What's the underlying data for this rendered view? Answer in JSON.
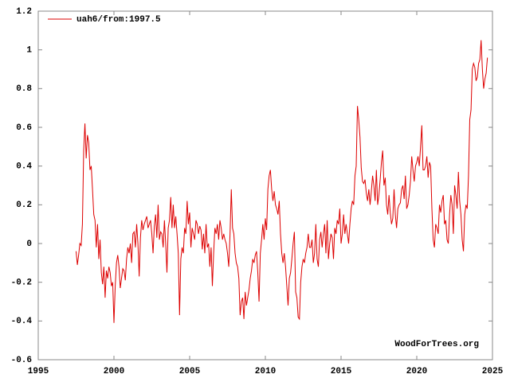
{
  "chart_data": {
    "type": "line",
    "annotation": "WoodForTrees.org",
    "xlim": [
      1995,
      2025
    ],
    "xticks": [
      1995,
      2000,
      2005,
      2010,
      2015,
      2020,
      2025
    ],
    "ylim": [
      -0.6,
      1.2
    ],
    "yticks": [
      -0.6,
      -0.4,
      -0.2,
      0,
      0.2,
      0.4,
      0.6,
      0.8,
      1,
      1.2
    ],
    "grid": false,
    "legend": "top-left",
    "x": [
      1997.5,
      1997.583,
      1997.667,
      1997.75,
      1997.833,
      1997.917,
      1998,
      1998.083,
      1998.167,
      1998.25,
      1998.333,
      1998.417,
      1998.5,
      1998.583,
      1998.667,
      1998.75,
      1998.833,
      1998.917,
      1999,
      1999.083,
      1999.167,
      1999.25,
      1999.333,
      1999.417,
      1999.5,
      1999.583,
      1999.667,
      1999.75,
      1999.833,
      1999.917,
      2000,
      2000.083,
      2000.167,
      2000.25,
      2000.333,
      2000.417,
      2000.5,
      2000.583,
      2000.667,
      2000.75,
      2000.833,
      2000.917,
      2001,
      2001.083,
      2001.167,
      2001.25,
      2001.333,
      2001.417,
      2001.5,
      2001.583,
      2001.667,
      2001.75,
      2001.833,
      2001.917,
      2002,
      2002.083,
      2002.167,
      2002.25,
      2002.333,
      2002.417,
      2002.5,
      2002.583,
      2002.667,
      2002.75,
      2002.833,
      2002.917,
      2003,
      2003.083,
      2003.167,
      2003.25,
      2003.333,
      2003.417,
      2003.5,
      2003.583,
      2003.667,
      2003.75,
      2003.833,
      2003.917,
      2004,
      2004.083,
      2004.167,
      2004.25,
      2004.333,
      2004.417,
      2004.5,
      2004.583,
      2004.667,
      2004.75,
      2004.833,
      2004.917,
      2005,
      2005.083,
      2005.167,
      2005.25,
      2005.333,
      2005.417,
      2005.5,
      2005.583,
      2005.667,
      2005.75,
      2005.833,
      2005.917,
      2006,
      2006.083,
      2006.167,
      2006.25,
      2006.333,
      2006.417,
      2006.5,
      2006.583,
      2006.667,
      2006.75,
      2006.833,
      2006.917,
      2007,
      2007.083,
      2007.167,
      2007.25,
      2007.333,
      2007.417,
      2007.5,
      2007.583,
      2007.667,
      2007.75,
      2007.833,
      2007.917,
      2008,
      2008.083,
      2008.167,
      2008.25,
      2008.333,
      2008.417,
      2008.5,
      2008.583,
      2008.667,
      2008.75,
      2008.833,
      2008.917,
      2009,
      2009.083,
      2009.167,
      2009.25,
      2009.333,
      2009.417,
      2009.5,
      2009.583,
      2009.667,
      2009.75,
      2009.833,
      2009.917,
      2010,
      2010.083,
      2010.167,
      2010.25,
      2010.333,
      2010.417,
      2010.5,
      2010.583,
      2010.667,
      2010.75,
      2010.833,
      2010.917,
      2011,
      2011.083,
      2011.167,
      2011.25,
      2011.333,
      2011.417,
      2011.5,
      2011.583,
      2011.667,
      2011.75,
      2011.833,
      2011.917,
      2012,
      2012.083,
      2012.167,
      2012.25,
      2012.333,
      2012.417,
      2012.5,
      2012.583,
      2012.667,
      2012.75,
      2012.833,
      2012.917,
      2013,
      2013.083,
      2013.167,
      2013.25,
      2013.333,
      2013.417,
      2013.5,
      2013.583,
      2013.667,
      2013.75,
      2013.833,
      2013.917,
      2014,
      2014.083,
      2014.167,
      2014.25,
      2014.333,
      2014.417,
      2014.5,
      2014.583,
      2014.667,
      2014.75,
      2014.833,
      2014.917,
      2015,
      2015.083,
      2015.167,
      2015.25,
      2015.333,
      2015.417,
      2015.5,
      2015.583,
      2015.667,
      2015.75,
      2015.833,
      2015.917,
      2016,
      2016.083,
      2016.167,
      2016.25,
      2016.333,
      2016.417,
      2016.5,
      2016.583,
      2016.667,
      2016.75,
      2016.833,
      2016.917,
      2017,
      2017.083,
      2017.167,
      2017.25,
      2017.333,
      2017.417,
      2017.5,
      2017.583,
      2017.667,
      2017.75,
      2017.833,
      2017.917,
      2018,
      2018.083,
      2018.167,
      2018.25,
      2018.333,
      2018.417,
      2018.5,
      2018.583,
      2018.667,
      2018.75,
      2018.833,
      2018.917,
      2019,
      2019.083,
      2019.167,
      2019.25,
      2019.333,
      2019.417,
      2019.5,
      2019.583,
      2019.667,
      2019.75,
      2019.833,
      2019.917,
      2020,
      2020.083,
      2020.167,
      2020.25,
      2020.333,
      2020.417,
      2020.5,
      2020.583,
      2020.667,
      2020.75,
      2020.833,
      2020.917,
      2021,
      2021.083,
      2021.167,
      2021.25,
      2021.333,
      2021.417,
      2021.5,
      2021.583,
      2021.667,
      2021.75,
      2021.833,
      2021.917,
      2022,
      2022.083,
      2022.167,
      2022.25,
      2022.333,
      2022.417,
      2022.5,
      2022.583,
      2022.667,
      2022.75,
      2022.833,
      2022.917,
      2023,
      2023.083,
      2023.167,
      2023.25,
      2023.333,
      2023.417,
      2023.5,
      2023.583,
      2023.667,
      2023.75,
      2023.833,
      2023.917,
      2024,
      2024.083,
      2024.167,
      2024.25,
      2024.333,
      2024.417,
      2024.5,
      2024.583,
      2024.667
    ],
    "series": [
      {
        "name": "uah6/from:1997.5",
        "color": "#dd0000",
        "values": [
          -0.04,
          -0.11,
          -0.06,
          0.0,
          -0.01,
          0.1,
          0.48,
          0.62,
          0.44,
          0.56,
          0.52,
          0.38,
          0.4,
          0.28,
          0.15,
          0.12,
          -0.02,
          0.1,
          -0.08,
          0.02,
          -0.15,
          -0.21,
          -0.12,
          -0.28,
          -0.14,
          -0.18,
          -0.12,
          -0.15,
          -0.22,
          -0.2,
          -0.41,
          -0.22,
          -0.1,
          -0.06,
          -0.12,
          -0.23,
          -0.18,
          -0.13,
          -0.14,
          -0.19,
          -0.08,
          -0.02,
          -0.05,
          0.0,
          -0.1,
          0.05,
          0.06,
          -0.02,
          0.1,
          0.0,
          -0.17,
          0.03,
          0.12,
          0.07,
          0.1,
          0.12,
          0.14,
          0.08,
          0.1,
          0.12,
          0.05,
          -0.05,
          0.09,
          0.15,
          0.03,
          0.2,
          0.02,
          0.06,
          0.05,
          -0.02,
          0.12,
          0.0,
          -0.15,
          0.08,
          0.12,
          0.24,
          0.08,
          0.2,
          0.08,
          0.14,
          0.05,
          -0.05,
          -0.37,
          -0.08,
          -0.02,
          -0.05,
          0.08,
          0.05,
          0.22,
          0.1,
          0.16,
          -0.02,
          0.08,
          0.05,
          0.02,
          0.12,
          0.1,
          0.05,
          0.09,
          0.07,
          -0.03,
          0.05,
          -0.05,
          0.1,
          -0.02,
          0.0,
          -0.12,
          -0.02,
          -0.22,
          -0.05,
          0.08,
          0.05,
          0.1,
          0.02,
          0.12,
          0.08,
          0.02,
          0.05,
          0.02,
          0.0,
          -0.05,
          -0.12,
          0.05,
          0.28,
          0.08,
          0.05,
          -0.05,
          -0.1,
          -0.12,
          -0.18,
          -0.37,
          -0.3,
          -0.28,
          -0.39,
          -0.25,
          -0.32,
          -0.28,
          -0.24,
          -0.18,
          -0.14,
          -0.08,
          -0.1,
          -0.06,
          -0.04,
          -0.15,
          -0.3,
          -0.05,
          0.02,
          0.1,
          0.02,
          0.13,
          0.07,
          0.28,
          0.35,
          0.38,
          0.28,
          0.22,
          0.27,
          0.2,
          0.18,
          0.15,
          0.22,
          0.05,
          -0.05,
          -0.1,
          -0.05,
          -0.12,
          -0.22,
          -0.32,
          -0.18,
          -0.15,
          -0.08,
          0.0,
          0.06,
          -0.25,
          -0.28,
          -0.38,
          -0.39,
          -0.2,
          -0.12,
          -0.08,
          -0.1,
          -0.05,
          -0.02,
          0.05,
          -0.02,
          -0.02,
          0.02,
          -0.1,
          -0.05,
          0.1,
          -0.08,
          -0.12,
          0.02,
          0.06,
          -0.02,
          0.05,
          0.1,
          -0.05,
          0.12,
          -0.08,
          0.0,
          0.05,
          0.03,
          -0.08,
          0.08,
          0.05,
          0.12,
          0.1,
          0.18,
          0.0,
          0.05,
          0.15,
          0.05,
          0.1,
          0.05,
          0.0,
          0.1,
          0.18,
          0.22,
          0.2,
          0.35,
          0.4,
          0.71,
          0.64,
          0.55,
          0.39,
          0.32,
          0.31,
          0.33,
          0.26,
          0.22,
          0.28,
          0.2,
          0.27,
          0.35,
          0.3,
          0.22,
          0.38,
          0.2,
          0.25,
          0.33,
          0.42,
          0.48,
          0.3,
          0.34,
          0.2,
          0.15,
          0.25,
          0.16,
          0.1,
          0.13,
          0.28,
          0.15,
          0.08,
          0.18,
          0.2,
          0.21,
          0.28,
          0.3,
          0.23,
          0.35,
          0.18,
          0.2,
          0.25,
          0.32,
          0.45,
          0.38,
          0.32,
          0.4,
          0.42,
          0.45,
          0.4,
          0.5,
          0.61,
          0.38,
          0.38,
          0.4,
          0.45,
          0.34,
          0.42,
          0.4,
          0.18,
          0.02,
          -0.02,
          0.1,
          0.08,
          0.05,
          0.2,
          0.16,
          0.22,
          0.25,
          0.1,
          0.12,
          0.02,
          0.0,
          0.15,
          0.25,
          0.2,
          0.05,
          0.3,
          0.25,
          0.18,
          0.37,
          0.22,
          0.15,
          0.02,
          -0.04,
          0.15,
          0.2,
          0.18,
          0.35,
          0.64,
          0.69,
          0.9,
          0.93,
          0.91,
          0.84,
          0.86,
          0.93,
          0.95,
          1.05,
          0.9,
          0.8,
          0.85,
          0.88,
          0.96
        ]
      }
    ]
  }
}
